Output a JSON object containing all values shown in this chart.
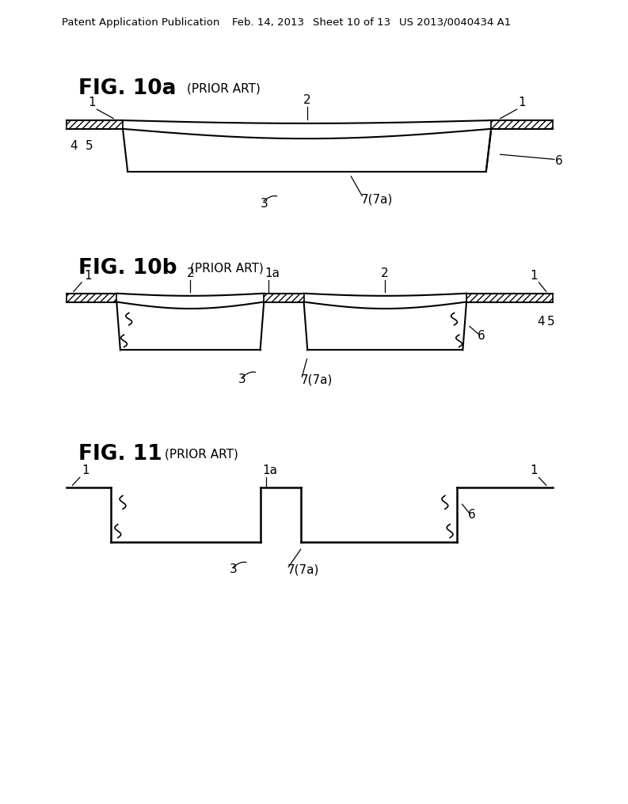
{
  "bg_color": "#ffffff",
  "header_text1": "Patent Application Publication",
  "header_text2": "Feb. 14, 2013",
  "header_text3": "Sheet 10 of 13",
  "header_text4": "US 2013/0040434 A1",
  "fig10a_title": "FIG. 10a",
  "fig10a_prior": "(PRIOR ART)",
  "fig10b_title": "FIG. 10b",
  "fig10b_prior": "(PRIOR ART)",
  "fig11_title": "FIG. 11",
  "fig11_prior": "(PRIOR ART)"
}
